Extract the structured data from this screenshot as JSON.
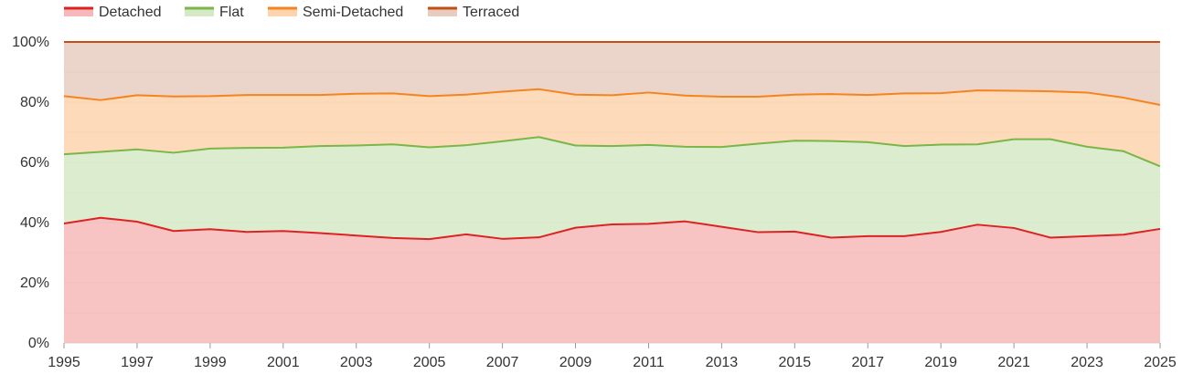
{
  "chart_data": {
    "type": "area",
    "stacked": true,
    "normalized": true,
    "legend": "top-left",
    "grid": true,
    "x": [
      1995,
      1996,
      1997,
      1998,
      1999,
      2000,
      2001,
      2002,
      2003,
      2004,
      2005,
      2006,
      2007,
      2008,
      2009,
      2010,
      2011,
      2012,
      2013,
      2014,
      2015,
      2016,
      2017,
      2018,
      2019,
      2020,
      2021,
      2022,
      2023,
      2024,
      2025
    ],
    "xticks": [
      "1995",
      "1997",
      "1999",
      "2001",
      "2003",
      "2005",
      "2007",
      "2009",
      "2011",
      "2013",
      "2015",
      "2017",
      "2019",
      "2021",
      "2023",
      "2025"
    ],
    "xtick_values": [
      1995,
      1997,
      1999,
      2001,
      2003,
      2005,
      2007,
      2009,
      2011,
      2013,
      2015,
      2017,
      2019,
      2021,
      2023,
      2025
    ],
    "yticks": [
      "0%",
      "20%",
      "40%",
      "60%",
      "80%",
      "100%"
    ],
    "ytick_values": [
      0,
      20,
      40,
      60,
      80,
      100
    ],
    "ylim": [
      0,
      100
    ],
    "xlim": [
      1995,
      2025
    ],
    "series": [
      {
        "name": "Detached",
        "line_color": "#dc2323",
        "fill_color": "#f6b8b9",
        "values": [
          39.7,
          41.6,
          40.3,
          37.2,
          37.8,
          36.9,
          37.2,
          36.5,
          35.7,
          34.9,
          34.5,
          36.1,
          34.6,
          35.1,
          38.3,
          39.4,
          39.6,
          40.4,
          38.6,
          36.8,
          37.0,
          35.0,
          35.5,
          35.5,
          36.9,
          39.3,
          38.2,
          35.0,
          35.5,
          36.0,
          37.9
        ]
      },
      {
        "name": "Flat",
        "line_color": "#7ab648",
        "fill_color": "#d6e9c6",
        "values": [
          23.0,
          21.9,
          24.0,
          26.0,
          26.8,
          27.9,
          27.7,
          28.9,
          29.9,
          31.1,
          30.5,
          29.6,
          32.4,
          33.3,
          27.3,
          26.0,
          26.2,
          24.8,
          26.5,
          29.4,
          30.2,
          32.1,
          31.2,
          29.9,
          29.0,
          26.7,
          29.5,
          32.7,
          29.7,
          27.7,
          20.8
        ]
      },
      {
        "name": "Semi-Detached",
        "line_color": "#f5841f",
        "fill_color": "#fdd4ad",
        "values": [
          19.3,
          17.2,
          18.0,
          18.7,
          17.4,
          17.6,
          17.5,
          17.0,
          17.2,
          16.9,
          17.0,
          16.8,
          16.5,
          15.9,
          16.9,
          16.9,
          17.4,
          17.0,
          16.7,
          15.6,
          15.3,
          15.6,
          15.7,
          17.5,
          17.1,
          17.9,
          16.1,
          15.9,
          18.0,
          17.8,
          20.4
        ]
      },
      {
        "name": "Terraced",
        "line_color": "#c44e16",
        "fill_color": "#e7ccc0",
        "values": [
          18.0,
          19.3,
          17.7,
          18.1,
          18.0,
          17.6,
          17.6,
          17.6,
          17.2,
          17.1,
          18.0,
          17.5,
          16.5,
          15.7,
          17.5,
          17.7,
          16.8,
          17.8,
          18.2,
          18.2,
          17.5,
          17.3,
          17.6,
          17.1,
          17.0,
          16.1,
          16.2,
          16.4,
          16.8,
          18.5,
          20.9
        ]
      }
    ]
  }
}
